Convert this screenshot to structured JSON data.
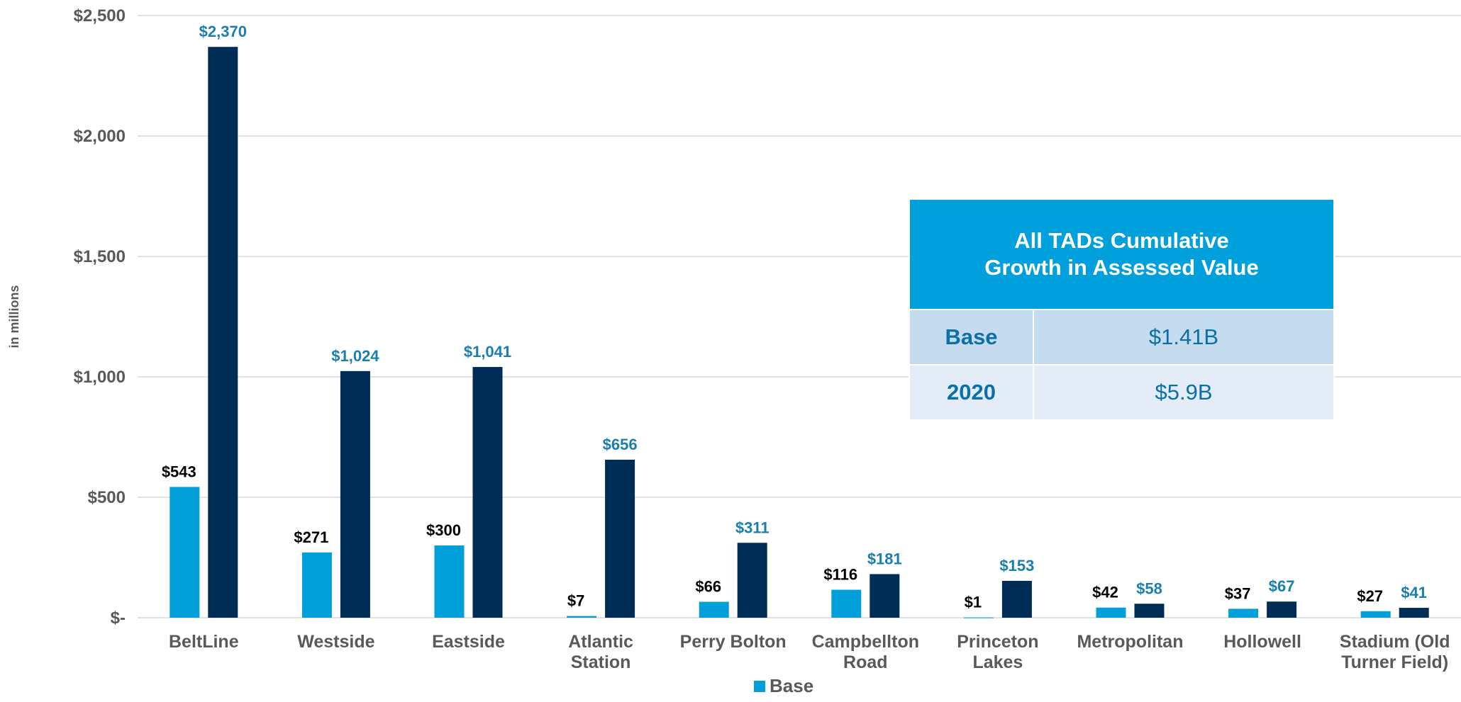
{
  "chart_data": {
    "type": "bar",
    "y_axis_label": "in millions",
    "categories": [
      "BeltLine",
      "Westside",
      "Eastside",
      "Atlantic Station",
      "Perry Bolton",
      "Campbellton Road",
      "Princeton Lakes",
      "Metropolitan",
      "Hollowell",
      "Stadium (Old Turner Field)"
    ],
    "series": [
      {
        "name": "Base",
        "color": "#009fda",
        "label_color": "#000000",
        "values": [
          543,
          271,
          300,
          7,
          66,
          116,
          1,
          42,
          37,
          27
        ],
        "value_labels": [
          "$543",
          "$271",
          "$300",
          "$7",
          "$66",
          "$116",
          "$1",
          "$42",
          "$37",
          "$27"
        ]
      },
      {
        "color": "#002d55",
        "label_color": "#1a7fb0",
        "values": [
          2370,
          1024,
          1041,
          656,
          311,
          181,
          153,
          58,
          67,
          41
        ],
        "value_labels": [
          "$2,370",
          "$1,024",
          "$1,041",
          "$656",
          "$311",
          "$181",
          "$153",
          "$58",
          "$67",
          "$41"
        ]
      }
    ],
    "ylim": [
      0,
      2500
    ],
    "yticks": [
      {
        "value": 0,
        "label": "$-"
      },
      {
        "value": 500,
        "label": "$500"
      },
      {
        "value": 1000,
        "label": "$1,000"
      },
      {
        "value": 1500,
        "label": "$1,500"
      },
      {
        "value": 2000,
        "label": "$2,000"
      },
      {
        "value": 2500,
        "label": "$2,500"
      }
    ],
    "grid": true,
    "legend": "bottom",
    "inset_table": {
      "title": "All TADs Cumulative Growth in Assessed Value",
      "rows": [
        [
          "Base",
          "$1.41B"
        ],
        [
          "2020",
          "$5.9B"
        ]
      ]
    }
  }
}
